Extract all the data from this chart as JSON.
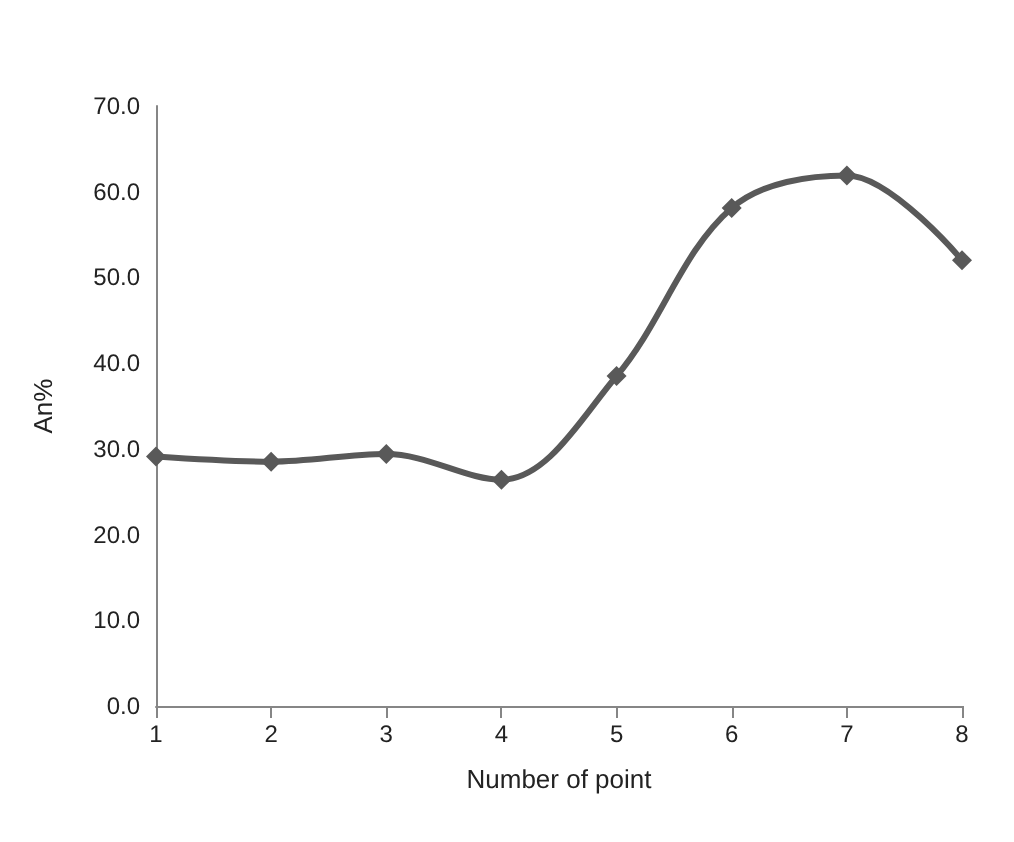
{
  "chart_data": {
    "type": "line",
    "xlabel": "Number of point",
    "ylabel": "An%",
    "categories": [
      "1",
      "2",
      "3",
      "4",
      "5",
      "6",
      "7",
      "8"
    ],
    "series": [
      {
        "color": "#595959",
        "values": [
          29.1,
          28.5,
          29.4,
          26.4,
          38.5,
          58.1,
          61.9,
          52.0
        ]
      }
    ],
    "ylim": [
      0,
      70
    ],
    "yticks": [
      {
        "value": 0,
        "label": "0.0"
      },
      {
        "value": 10,
        "label": "10.0"
      },
      {
        "value": 20,
        "label": "20.0"
      },
      {
        "value": 30,
        "label": "30.0"
      },
      {
        "value": 40,
        "label": "40.0"
      },
      {
        "value": 50,
        "label": "50.0"
      },
      {
        "value": 60,
        "label": "60.0"
      },
      {
        "value": 70,
        "label": "70.0"
      }
    ],
    "grid": false,
    "marker": "diamond",
    "line_style": "solid"
  }
}
